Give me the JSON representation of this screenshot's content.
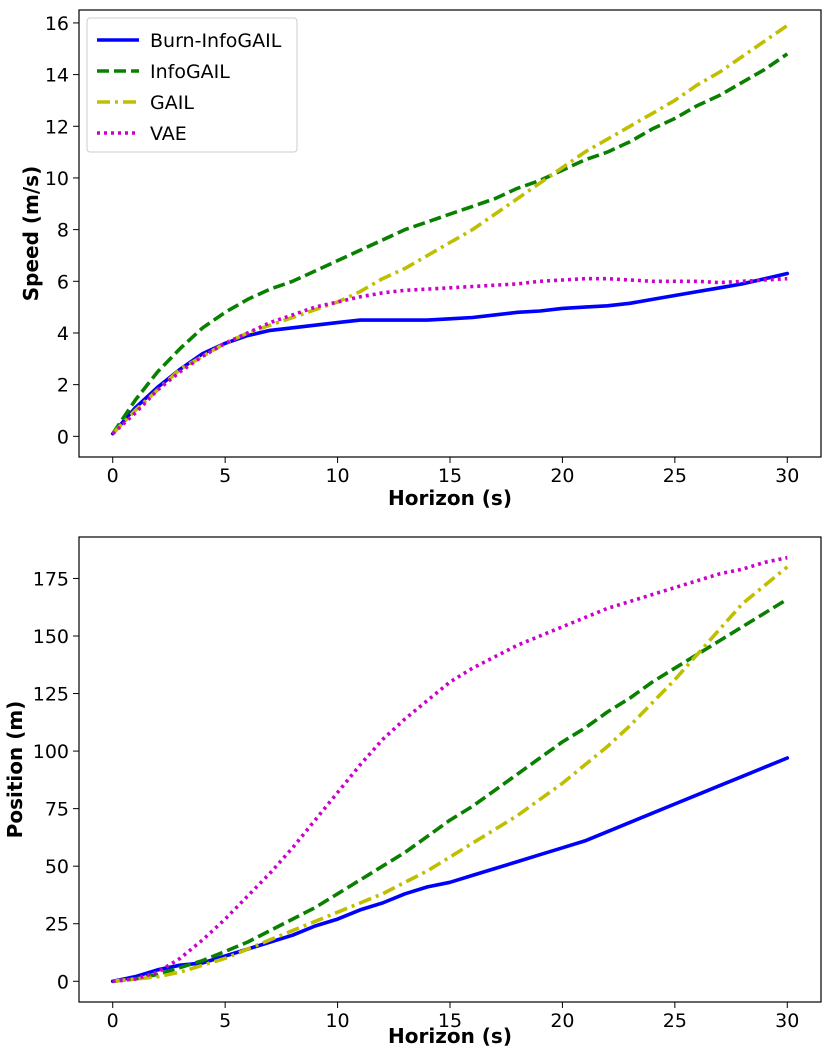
{
  "chart_data": [
    {
      "type": "line",
      "id": "speed",
      "xlabel": "Horizon (s)",
      "ylabel": "Speed (m/s)",
      "xlim": [
        -1.5,
        31.5
      ],
      "ylim": [
        -0.8,
        16.5
      ],
      "xticks": [
        0,
        5,
        10,
        15,
        20,
        25,
        30
      ],
      "yticks": [
        0,
        2,
        4,
        6,
        8,
        10,
        12,
        14,
        16
      ],
      "legend": "upper-left",
      "series": [
        {
          "name": "Burn-InfoGAIL",
          "color": "#0000ff",
          "dash": "solid",
          "x": [
            0,
            1,
            2,
            3,
            4,
            5,
            6,
            7,
            8,
            9,
            10,
            11,
            12,
            13,
            14,
            15,
            16,
            17,
            18,
            19,
            20,
            21,
            22,
            23,
            24,
            25,
            26,
            27,
            28,
            29,
            30
          ],
          "y": [
            0.1,
            1.1,
            1.9,
            2.6,
            3.2,
            3.6,
            3.9,
            4.1,
            4.2,
            4.3,
            4.4,
            4.5,
            4.5,
            4.5,
            4.5,
            4.55,
            4.6,
            4.7,
            4.8,
            4.85,
            4.95,
            5.0,
            5.05,
            5.15,
            5.3,
            5.45,
            5.6,
            5.75,
            5.9,
            6.1,
            6.3
          ]
        },
        {
          "name": "InfoGAIL",
          "color": "#0a8000",
          "dash": "dashed",
          "x": [
            0,
            1,
            2,
            3,
            4,
            5,
            6,
            7,
            8,
            9,
            10,
            11,
            12,
            13,
            14,
            15,
            16,
            17,
            18,
            19,
            20,
            21,
            22,
            23,
            24,
            25,
            26,
            27,
            28,
            29,
            30
          ],
          "y": [
            0.1,
            1.4,
            2.5,
            3.4,
            4.2,
            4.8,
            5.3,
            5.7,
            6.0,
            6.4,
            6.8,
            7.2,
            7.6,
            8.0,
            8.3,
            8.6,
            8.9,
            9.2,
            9.6,
            9.9,
            10.3,
            10.7,
            11.0,
            11.4,
            11.9,
            12.3,
            12.8,
            13.2,
            13.7,
            14.2,
            14.8
          ]
        },
        {
          "name": "GAIL",
          "color": "#bfbf00",
          "dash": "dashdot",
          "x": [
            0,
            1,
            2,
            3,
            4,
            5,
            6,
            7,
            8,
            9,
            10,
            11,
            12,
            13,
            14,
            15,
            16,
            17,
            18,
            19,
            20,
            21,
            22,
            23,
            24,
            25,
            26,
            27,
            28,
            29,
            30
          ],
          "y": [
            0.1,
            1.0,
            1.8,
            2.6,
            3.1,
            3.6,
            4.0,
            4.3,
            4.6,
            4.9,
            5.2,
            5.6,
            6.1,
            6.5,
            7.0,
            7.5,
            8.0,
            8.6,
            9.2,
            9.8,
            10.4,
            11.0,
            11.5,
            12.0,
            12.5,
            13.0,
            13.6,
            14.1,
            14.7,
            15.3,
            15.9
          ]
        },
        {
          "name": "VAE",
          "color": "#cc00cc",
          "dash": "dotted",
          "x": [
            0,
            1,
            2,
            3,
            4,
            5,
            6,
            7,
            8,
            9,
            10,
            11,
            12,
            13,
            14,
            15,
            16,
            17,
            18,
            19,
            20,
            21,
            22,
            23,
            24,
            25,
            26,
            27,
            28,
            29,
            30
          ],
          "y": [
            0.1,
            0.9,
            1.8,
            2.5,
            3.1,
            3.6,
            4.0,
            4.4,
            4.7,
            5.0,
            5.2,
            5.4,
            5.55,
            5.65,
            5.7,
            5.75,
            5.8,
            5.85,
            5.9,
            6.0,
            6.05,
            6.1,
            6.1,
            6.05,
            6.0,
            6.0,
            6.0,
            5.95,
            6.0,
            6.05,
            6.1
          ]
        }
      ]
    },
    {
      "type": "line",
      "id": "position",
      "xlabel": "Horizon (s)",
      "ylabel": "Position (m)",
      "xlim": [
        -1.5,
        31.5
      ],
      "ylim": [
        -9,
        193
      ],
      "xticks": [
        0,
        5,
        10,
        15,
        20,
        25,
        30
      ],
      "yticks": [
        0,
        25,
        50,
        75,
        100,
        125,
        150,
        175
      ],
      "series": [
        {
          "name": "Burn-InfoGAIL",
          "color": "#0000ff",
          "dash": "solid",
          "x": [
            0,
            1,
            2,
            3,
            4,
            5,
            6,
            7,
            8,
            9,
            10,
            11,
            12,
            13,
            14,
            15,
            16,
            17,
            18,
            19,
            20,
            21,
            22,
            23,
            24,
            25,
            26,
            27,
            28,
            29,
            30
          ],
          "y": [
            0,
            2,
            5,
            7,
            8,
            11,
            14,
            17,
            20,
            24,
            27,
            31,
            34,
            38,
            41,
            43,
            46,
            49,
            52,
            55,
            58,
            61,
            65,
            69,
            73,
            77,
            81,
            85,
            89,
            93,
            97
          ]
        },
        {
          "name": "InfoGAIL",
          "color": "#0a8000",
          "dash": "dashed",
          "x": [
            0,
            1,
            2,
            3,
            4,
            5,
            6,
            7,
            8,
            9,
            10,
            11,
            12,
            13,
            14,
            15,
            16,
            17,
            18,
            19,
            20,
            21,
            22,
            23,
            24,
            25,
            26,
            27,
            28,
            29,
            30
          ],
          "y": [
            0,
            1,
            3,
            6,
            9,
            13,
            17,
            22,
            27,
            32,
            38,
            44,
            50,
            56,
            63,
            70,
            76,
            83,
            90,
            97,
            104,
            110,
            117,
            123,
            130,
            136,
            142,
            148,
            154,
            160,
            166
          ]
        },
        {
          "name": "GAIL",
          "color": "#bfbf00",
          "dash": "dashdot",
          "x": [
            0,
            1,
            2,
            3,
            4,
            5,
            6,
            7,
            8,
            9,
            10,
            11,
            12,
            13,
            14,
            15,
            16,
            17,
            18,
            19,
            20,
            21,
            22,
            23,
            24,
            25,
            26,
            27,
            28,
            29,
            30
          ],
          "y": [
            0,
            1,
            2,
            4,
            7,
            10,
            14,
            18,
            22,
            26,
            30,
            34,
            38,
            43,
            48,
            54,
            60,
            66,
            72,
            79,
            86,
            94,
            102,
            111,
            121,
            131,
            142,
            153,
            164,
            172,
            180
          ]
        },
        {
          "name": "VAE",
          "color": "#cc00cc",
          "dash": "dotted",
          "x": [
            0,
            1,
            2,
            3,
            4,
            5,
            6,
            7,
            8,
            9,
            10,
            11,
            12,
            13,
            14,
            15,
            16,
            17,
            18,
            19,
            20,
            21,
            22,
            23,
            24,
            25,
            26,
            27,
            28,
            29,
            30
          ],
          "y": [
            0,
            1,
            4,
            10,
            18,
            27,
            37,
            47,
            58,
            70,
            82,
            94,
            105,
            114,
            122,
            130,
            136,
            141,
            146,
            150,
            154,
            158,
            162,
            165,
            168,
            171,
            174,
            177,
            179,
            182,
            184
          ]
        }
      ]
    }
  ]
}
